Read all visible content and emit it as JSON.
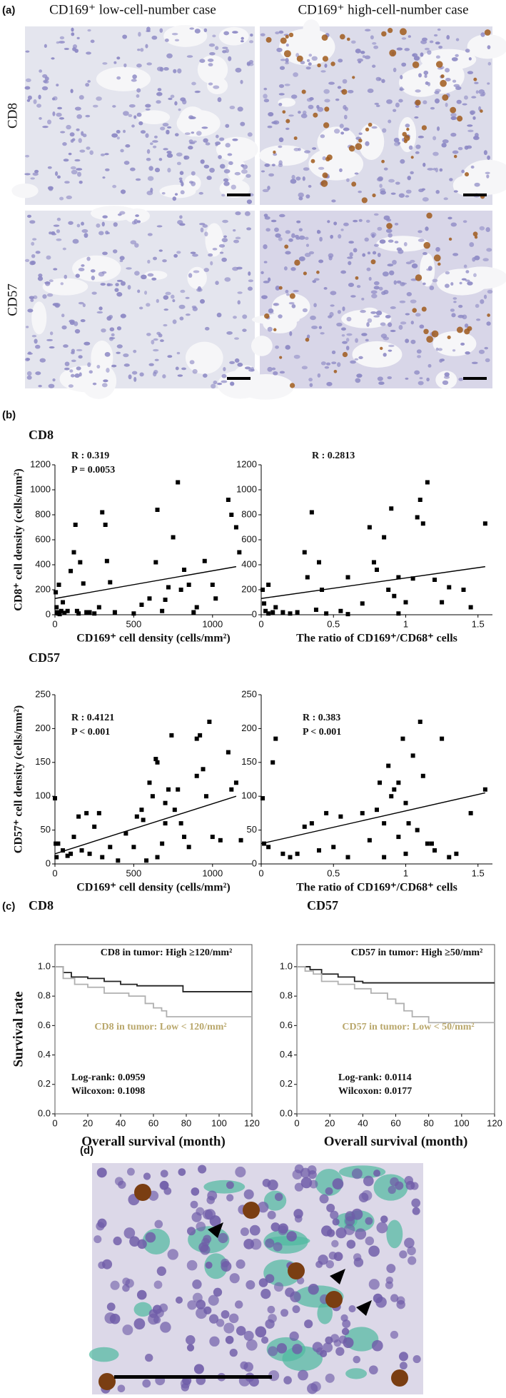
{
  "panels": {
    "a": {
      "label": "(a)",
      "columns": [
        "CD169⁺ low-cell-number case",
        "CD169⁺ high-cell-number case"
      ],
      "rows": [
        "CD8",
        "CD57"
      ]
    },
    "b": {
      "label": "(b)",
      "sections": [
        "CD8",
        "CD57"
      ]
    },
    "c": {
      "label": "(c)"
    },
    "d": {
      "label": "(d)"
    }
  },
  "chart_data": [
    {
      "type": "scatter",
      "ylabel": "CD8⁺ cell density (cells/mm²)",
      "xlabel": "CD169⁺ cell density (cells/mm²)",
      "annotations": [
        "R : 0.319",
        "P = 0.0053"
      ],
      "color": "#000000",
      "x": [
        5,
        10,
        15,
        20,
        25,
        30,
        40,
        50,
        60,
        80,
        100,
        120,
        130,
        140,
        150,
        160,
        180,
        200,
        220,
        250,
        280,
        300,
        320,
        330,
        350,
        380,
        500,
        550,
        600,
        640,
        650,
        700,
        720,
        750,
        780,
        800,
        820,
        850,
        900,
        950,
        1000,
        1020,
        1100,
        1120,
        1150,
        1170,
        880,
        680
      ],
      "values": [
        180,
        60,
        20,
        10,
        240,
        5,
        30,
        100,
        15,
        30,
        350,
        500,
        720,
        30,
        10,
        420,
        250,
        20,
        20,
        10,
        60,
        820,
        720,
        430,
        260,
        20,
        10,
        80,
        130,
        420,
        840,
        120,
        220,
        620,
        1060,
        200,
        360,
        240,
        60,
        430,
        240,
        130,
        920,
        800,
        700,
        500,
        20,
        30
      ],
      "fit": {
        "x": [
          0,
          1150
        ],
        "values": [
          130,
          385
        ]
      },
      "xlim": [
        0,
        1250
      ],
      "xticks": [
        0,
        500,
        1000
      ],
      "ylim": [
        0,
        1200
      ],
      "yticks": [
        0,
        200,
        400,
        600,
        800,
        1000,
        1200
      ]
    },
    {
      "type": "scatter",
      "xlabel": "The ratio of CD169⁺/CD68⁺ cells",
      "annotations": [
        "R : 0.2813"
      ],
      "color": "#000000",
      "x": [
        0.01,
        0.02,
        0.03,
        0.05,
        0.05,
        0.08,
        0.1,
        0.15,
        0.2,
        0.25,
        0.3,
        0.32,
        0.35,
        0.38,
        0.4,
        0.42,
        0.45,
        0.55,
        0.6,
        0.7,
        0.75,
        0.78,
        0.8,
        0.85,
        0.88,
        0.9,
        0.92,
        0.95,
        1.0,
        1.05,
        1.08,
        1.1,
        1.12,
        1.15,
        1.2,
        1.25,
        1.3,
        1.4,
        1.45,
        1.55,
        0.6,
        0.95
      ],
      "values": [
        200,
        90,
        30,
        240,
        10,
        20,
        60,
        20,
        10,
        20,
        500,
        300,
        820,
        40,
        420,
        200,
        10,
        30,
        300,
        90,
        700,
        420,
        360,
        620,
        200,
        850,
        150,
        300,
        100,
        290,
        780,
        920,
        730,
        1060,
        280,
        100,
        220,
        200,
        60,
        730,
        5,
        10
      ],
      "fit": {
        "x": [
          0,
          1.55
        ],
        "values": [
          130,
          385
        ]
      },
      "xlim": [
        0,
        1.6
      ],
      "xticks": [
        0,
        0.5,
        1,
        1.5
      ],
      "ylim": [
        0,
        1200
      ],
      "yticks": [
        0,
        200,
        400,
        600,
        800,
        1000,
        1200
      ]
    },
    {
      "type": "scatter",
      "ylabel": "CD57⁺ cell density (cells/mm²)",
      "xlabel": "CD169⁺ cell density (cells/mm²)",
      "annotations": [
        "R : 0.4121",
        "P < 0.001"
      ],
      "color": "#000000",
      "x": [
        0,
        5,
        10,
        20,
        50,
        80,
        100,
        120,
        150,
        170,
        200,
        220,
        250,
        280,
        300,
        350,
        400,
        450,
        500,
        520,
        550,
        560,
        580,
        600,
        620,
        640,
        650,
        680,
        700,
        720,
        740,
        760,
        780,
        800,
        820,
        850,
        900,
        920,
        940,
        960,
        980,
        1000,
        1050,
        1100,
        1120,
        1150,
        1180,
        650,
        700,
        900
      ],
      "values": [
        97,
        30,
        10,
        30,
        20,
        12,
        15,
        40,
        70,
        20,
        75,
        15,
        55,
        75,
        10,
        25,
        5,
        45,
        25,
        70,
        80,
        65,
        5,
        120,
        100,
        155,
        150,
        30,
        90,
        110,
        190,
        80,
        110,
        60,
        40,
        25,
        185,
        190,
        140,
        100,
        210,
        40,
        35,
        165,
        110,
        120,
        35,
        10,
        60,
        130
      ],
      "fit": {
        "x": [
          0,
          1150
        ],
        "values": [
          15,
          100
        ]
      },
      "xlim": [
        0,
        1250
      ],
      "xticks": [
        0,
        500,
        1000
      ],
      "ylim": [
        0,
        250
      ],
      "yticks": [
        0,
        50,
        100,
        150,
        200,
        250
      ]
    },
    {
      "type": "scatter",
      "xlabel": "The ratio of CD169⁺/CD68⁺ cells",
      "annotations": [
        "R : 0.383",
        "P < 0.001"
      ],
      "color": "#000000",
      "x": [
        0.01,
        0.02,
        0.05,
        0.08,
        0.1,
        0.15,
        0.2,
        0.25,
        0.3,
        0.35,
        0.4,
        0.45,
        0.5,
        0.55,
        0.6,
        0.7,
        0.75,
        0.8,
        0.82,
        0.85,
        0.88,
        0.9,
        0.92,
        0.95,
        0.98,
        1.0,
        1.02,
        1.05,
        1.08,
        1.1,
        1.12,
        1.15,
        1.18,
        1.2,
        1.25,
        1.3,
        1.35,
        1.45,
        1.55,
        0.85,
        0.95,
        1.0
      ],
      "values": [
        97,
        30,
        25,
        150,
        185,
        15,
        10,
        15,
        55,
        60,
        20,
        75,
        25,
        70,
        10,
        75,
        35,
        80,
        120,
        60,
        145,
        100,
        110,
        120,
        185,
        90,
        60,
        160,
        50,
        210,
        130,
        30,
        30,
        20,
        185,
        10,
        15,
        75,
        110,
        10,
        40,
        15
      ],
      "fit": {
        "x": [
          0,
          1.55
        ],
        "values": [
          30,
          105
        ]
      },
      "xlim": [
        0,
        1.6
      ],
      "xticks": [
        0,
        0.5,
        1,
        1.5
      ],
      "ylim": [
        0,
        250
      ],
      "yticks": [
        0,
        50,
        100,
        150,
        200,
        250
      ]
    },
    {
      "type": "step",
      "title": "CD8",
      "ylabel": "Survival rate",
      "xlabel": "Overall survival (month)",
      "annotations": [
        "Log-rank: 0.0959",
        "Wilcoxon: 0.1098"
      ],
      "label_color": "#b9a76b",
      "series": [
        {
          "name": "CD8 in tumor: High ≥120/mm²",
          "color": "#222222",
          "x": [
            0,
            5,
            10,
            20,
            30,
            40,
            50,
            78,
            120
          ],
          "values": [
            1.0,
            0.96,
            0.93,
            0.92,
            0.9,
            0.88,
            0.87,
            0.83,
            0.83
          ]
        },
        {
          "name": "CD8 in tumor: Low < 120/mm²",
          "color": "#b0b0b0",
          "x": [
            0,
            5,
            12,
            20,
            30,
            45,
            55,
            60,
            65,
            68,
            120
          ],
          "values": [
            1.0,
            0.92,
            0.88,
            0.86,
            0.82,
            0.8,
            0.75,
            0.72,
            0.7,
            0.66,
            0.66
          ]
        }
      ],
      "xlim": [
        0,
        120
      ],
      "xticks": [
        0,
        20,
        40,
        60,
        80,
        100,
        120
      ],
      "ylim": [
        0,
        1.15
      ],
      "yticks": [
        {
          "value": 0,
          "label": "0.0"
        },
        {
          "value": 0.2,
          "label": "0.2"
        },
        {
          "value": 0.4,
          "label": "0.4"
        },
        {
          "value": 0.6,
          "label": "0.6"
        },
        {
          "value": 0.8,
          "label": "0.8"
        },
        {
          "value": 1,
          "label": "1.0"
        }
      ]
    },
    {
      "type": "step",
      "title": "CD57",
      "xlabel": "Overall survival (month)",
      "annotations": [
        "Log-rank: 0.0114",
        "Wilcoxon: 0.0177"
      ],
      "label_color": "#b9a76b",
      "series": [
        {
          "name": "CD57 in tumor: High ≥50/mm²",
          "color": "#222222",
          "x": [
            0,
            8,
            15,
            25,
            35,
            40,
            120
          ],
          "values": [
            1.0,
            0.98,
            0.95,
            0.93,
            0.9,
            0.89,
            0.89
          ]
        },
        {
          "name": "CD57 in tumor: Low < 50/mm²",
          "color": "#b0b0b0",
          "x": [
            0,
            5,
            10,
            15,
            25,
            35,
            45,
            55,
            60,
            65,
            70,
            80,
            120
          ],
          "values": [
            1.0,
            0.97,
            0.95,
            0.9,
            0.88,
            0.85,
            0.82,
            0.78,
            0.75,
            0.7,
            0.66,
            0.62,
            0.62
          ]
        }
      ],
      "xlim": [
        0,
        120
      ],
      "xticks": [
        0,
        20,
        40,
        60,
        80,
        100,
        120
      ],
      "ylim": [
        0,
        1.15
      ],
      "yticks": [
        {
          "value": 0,
          "label": "0.0"
        },
        {
          "value": 0.2,
          "label": "0.2"
        },
        {
          "value": 0.4,
          "label": "0.4"
        },
        {
          "value": 0.6,
          "label": "0.6"
        },
        {
          "value": 0.8,
          "label": "0.8"
        },
        {
          "value": 1,
          "label": "1.0"
        }
      ]
    }
  ]
}
